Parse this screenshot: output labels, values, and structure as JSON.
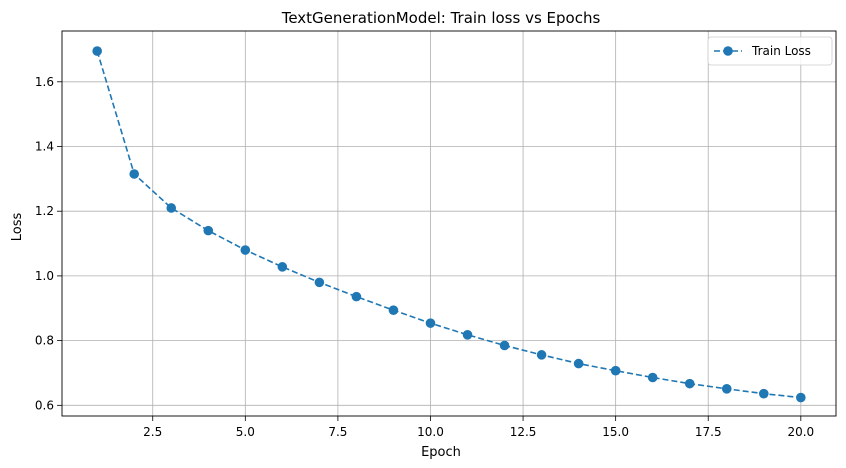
{
  "chart_data": {
    "type": "line",
    "title": "TextGenerationModel: Train loss vs Epochs",
    "xlabel": "Epoch",
    "ylabel": "Loss",
    "xlim": [
      0.05,
      20.95
    ],
    "ylim": [
      0.567,
      1.757
    ],
    "xticks": [
      2.5,
      5.0,
      7.5,
      10.0,
      12.5,
      15.0,
      17.5,
      20.0
    ],
    "xtick_labels": [
      "2.5",
      "5.0",
      "7.5",
      "10.0",
      "12.5",
      "15.0",
      "17.5",
      "20.0"
    ],
    "yticks": [
      0.6,
      0.8,
      1.0,
      1.2,
      1.4,
      1.6
    ],
    "ytick_labels": [
      "0.6",
      "0.8",
      "1.0",
      "1.2",
      "1.4",
      "1.6"
    ],
    "grid": true,
    "legend_position": "top-right",
    "series": [
      {
        "name": "Train Loss",
        "color": "#1f77b4",
        "line_style": "dashed",
        "marker": "circle",
        "x": [
          1,
          2,
          3,
          4,
          5,
          6,
          7,
          8,
          9,
          10,
          11,
          12,
          13,
          14,
          15,
          16,
          17,
          18,
          19,
          20
        ],
        "y": [
          1.695,
          1.315,
          1.21,
          1.14,
          1.08,
          1.028,
          0.98,
          0.936,
          0.894,
          0.854,
          0.818,
          0.785,
          0.756,
          0.729,
          0.707,
          0.686,
          0.667,
          0.651,
          0.636,
          0.624
        ]
      }
    ]
  }
}
